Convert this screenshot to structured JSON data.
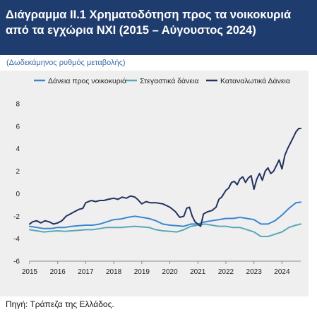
{
  "header": {
    "title": "Διάγραμμα ΙΙ.1 Χρηματοδότηση προς τα νοικοκυριά από τα εγχώρια ΝΧΙ (2015 – Αύγουστος 2024)"
  },
  "subtitle": "(Δωδεκάμηνος ρυθμός μεταβολής)",
  "source": "Πηγή: Τράπεζα της Ελλάδος.",
  "chart_data": {
    "type": "line",
    "title": "",
    "xlabel": "",
    "ylabel": "",
    "ylim": [
      -6,
      8
    ],
    "yticks": [
      -6,
      -4,
      -2,
      0,
      2,
      4,
      6,
      8
    ],
    "xlim": [
      2015,
      2024.67
    ],
    "xticks": [
      2015,
      2016,
      2017,
      2018,
      2019,
      2020,
      2021,
      2022,
      2023,
      2024
    ],
    "grid": false,
    "legend_position": "top",
    "series": [
      {
        "name": "Δάνεια προς νοικοκυριά",
        "color": "#3b86d1",
        "points": [
          [
            2015.0,
            -2.9
          ],
          [
            2015.25,
            -3.0
          ],
          [
            2015.5,
            -3.1
          ],
          [
            2015.75,
            -3.1
          ],
          [
            2016.0,
            -3.0
          ],
          [
            2016.25,
            -3.0
          ],
          [
            2016.5,
            -2.9
          ],
          [
            2016.75,
            -2.85
          ],
          [
            2017.0,
            -2.8
          ],
          [
            2017.25,
            -2.8
          ],
          [
            2017.5,
            -2.7
          ],
          [
            2017.75,
            -2.5
          ],
          [
            2018.0,
            -2.3
          ],
          [
            2018.25,
            -2.25
          ],
          [
            2018.5,
            -2.1
          ],
          [
            2018.75,
            -2.0
          ],
          [
            2019.0,
            -2.1
          ],
          [
            2019.25,
            -2.2
          ],
          [
            2019.5,
            -2.4
          ],
          [
            2019.75,
            -2.7
          ],
          [
            2020.0,
            -2.8
          ],
          [
            2020.25,
            -2.85
          ],
          [
            2020.5,
            -2.9
          ],
          [
            2020.75,
            -2.7
          ],
          [
            2021.0,
            -2.7
          ],
          [
            2021.25,
            -2.5
          ],
          [
            2021.5,
            -2.4
          ],
          [
            2021.75,
            -2.3
          ],
          [
            2022.0,
            -2.2
          ],
          [
            2022.25,
            -2.2
          ],
          [
            2022.5,
            -2.1
          ],
          [
            2022.75,
            -2.2
          ],
          [
            2023.0,
            -2.3
          ],
          [
            2023.25,
            -2.7
          ],
          [
            2023.5,
            -2.7
          ],
          [
            2023.75,
            -2.4
          ],
          [
            2024.0,
            -1.9
          ],
          [
            2024.25,
            -1.3
          ],
          [
            2024.5,
            -0.8
          ],
          [
            2024.67,
            -0.75
          ]
        ]
      },
      {
        "name": "Στεγαστικά δάνεια",
        "color": "#5aa8b6",
        "points": [
          [
            2015.0,
            -3.2
          ],
          [
            2015.25,
            -3.3
          ],
          [
            2015.5,
            -3.4
          ],
          [
            2015.75,
            -3.35
          ],
          [
            2016.0,
            -3.3
          ],
          [
            2016.25,
            -3.35
          ],
          [
            2016.5,
            -3.3
          ],
          [
            2016.75,
            -3.25
          ],
          [
            2017.0,
            -3.2
          ],
          [
            2017.25,
            -3.2
          ],
          [
            2017.5,
            -3.1
          ],
          [
            2017.75,
            -3.0
          ],
          [
            2018.0,
            -3.0
          ],
          [
            2018.25,
            -3.0
          ],
          [
            2018.5,
            -2.95
          ],
          [
            2018.75,
            -2.9
          ],
          [
            2019.0,
            -2.95
          ],
          [
            2019.25,
            -3.0
          ],
          [
            2019.5,
            -3.2
          ],
          [
            2019.75,
            -3.3
          ],
          [
            2020.0,
            -3.35
          ],
          [
            2020.25,
            -3.4
          ],
          [
            2020.5,
            -3.2
          ],
          [
            2020.75,
            -2.9
          ],
          [
            2021.0,
            -2.8
          ],
          [
            2021.25,
            -2.7
          ],
          [
            2021.5,
            -2.8
          ],
          [
            2021.75,
            -2.9
          ],
          [
            2022.0,
            -2.9
          ],
          [
            2022.25,
            -3.0
          ],
          [
            2022.5,
            -3.0
          ],
          [
            2022.75,
            -3.2
          ],
          [
            2023.0,
            -3.4
          ],
          [
            2023.25,
            -3.8
          ],
          [
            2023.5,
            -3.8
          ],
          [
            2023.75,
            -3.6
          ],
          [
            2024.0,
            -3.4
          ],
          [
            2024.25,
            -3.0
          ],
          [
            2024.5,
            -2.8
          ],
          [
            2024.67,
            -2.7
          ]
        ]
      },
      {
        "name": "Καταναλωτικά Δάνεια",
        "color": "#22315f",
        "points": [
          [
            2015.0,
            -2.7
          ],
          [
            2015.1,
            -2.5
          ],
          [
            2015.25,
            -2.4
          ],
          [
            2015.4,
            -2.6
          ],
          [
            2015.55,
            -2.4
          ],
          [
            2015.7,
            -2.5
          ],
          [
            2015.85,
            -2.7
          ],
          [
            2016.0,
            -2.6
          ],
          [
            2016.15,
            -2.4
          ],
          [
            2016.3,
            -2.0
          ],
          [
            2016.45,
            -1.8
          ],
          [
            2016.6,
            -1.6
          ],
          [
            2016.75,
            -1.4
          ],
          [
            2016.9,
            -1.3
          ],
          [
            2017.0,
            -0.8
          ],
          [
            2017.2,
            -0.6
          ],
          [
            2017.35,
            -0.7
          ],
          [
            2017.5,
            -0.6
          ],
          [
            2017.65,
            -0.6
          ],
          [
            2017.8,
            -0.5
          ],
          [
            2018.0,
            -0.4
          ],
          [
            2018.15,
            -0.5
          ],
          [
            2018.3,
            -0.3
          ],
          [
            2018.45,
            -0.4
          ],
          [
            2018.6,
            -0.2
          ],
          [
            2018.75,
            -0.3
          ],
          [
            2018.85,
            -0.5
          ],
          [
            2019.0,
            -0.9
          ],
          [
            2019.15,
            -0.7
          ],
          [
            2019.3,
            -0.8
          ],
          [
            2019.5,
            -0.8
          ],
          [
            2019.75,
            -0.9
          ],
          [
            2020.0,
            -1.2
          ],
          [
            2020.2,
            -1.6
          ],
          [
            2020.35,
            -2.1
          ],
          [
            2020.5,
            -2.0
          ],
          [
            2020.6,
            -1.3
          ],
          [
            2020.7,
            -1.2
          ],
          [
            2020.8,
            -2.0
          ],
          [
            2020.9,
            -2.5
          ],
          [
            2021.0,
            -2.7
          ],
          [
            2021.1,
            -2.9
          ],
          [
            2021.2,
            -1.8
          ],
          [
            2021.35,
            -1.6
          ],
          [
            2021.5,
            -1.5
          ],
          [
            2021.65,
            -1.2
          ],
          [
            2021.75,
            -0.5
          ],
          [
            2021.85,
            -0.3
          ],
          [
            2022.0,
            0.3
          ],
          [
            2022.1,
            0.5
          ],
          [
            2022.2,
            1.0
          ],
          [
            2022.3,
            1.1
          ],
          [
            2022.4,
            0.8
          ],
          [
            2022.5,
            1.3
          ],
          [
            2022.6,
            1.5
          ],
          [
            2022.7,
            1.0
          ],
          [
            2022.8,
            1.4
          ],
          [
            2022.9,
            1.6
          ],
          [
            2023.0,
            0.4
          ],
          [
            2023.1,
            1.3
          ],
          [
            2023.2,
            1.8
          ],
          [
            2023.3,
            1.2
          ],
          [
            2023.4,
            2.0
          ],
          [
            2023.5,
            2.3
          ],
          [
            2023.6,
            1.8
          ],
          [
            2023.7,
            2.0
          ],
          [
            2023.8,
            2.5
          ],
          [
            2023.9,
            3.0
          ],
          [
            2024.0,
            2.2
          ],
          [
            2024.1,
            3.4
          ],
          [
            2024.2,
            4.0
          ],
          [
            2024.3,
            4.5
          ],
          [
            2024.4,
            5.0
          ],
          [
            2024.5,
            5.5
          ],
          [
            2024.6,
            5.8
          ],
          [
            2024.67,
            5.8
          ]
        ]
      }
    ]
  }
}
